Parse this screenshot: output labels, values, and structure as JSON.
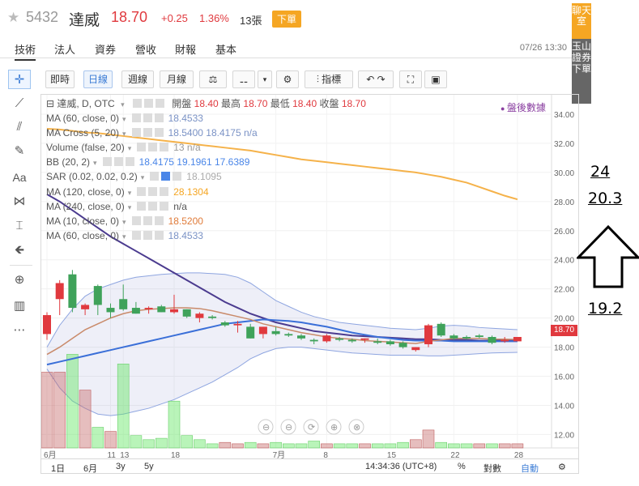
{
  "header": {
    "code": "5432",
    "name": "達威",
    "price": "18.70",
    "change": "+0.25",
    "change_pct": "1.36%",
    "volume": "13張",
    "order_label": "下單"
  },
  "tabs": [
    {
      "label": "技術",
      "active": true
    },
    {
      "label": "法人"
    },
    {
      "label": "資券"
    },
    {
      "label": "營收"
    },
    {
      "label": "財報"
    },
    {
      "label": "基本"
    }
  ],
  "datetime": "07/26 13:30",
  "banner": {
    "top": "聊天室",
    "bottom": "玉山證券下單"
  },
  "chart_toolbar": {
    "intraday": "即時",
    "daily": "日線",
    "weekly": "週線",
    "monthly": "月線",
    "indicators": "指標"
  },
  "legend": {
    "main_title": "達威, D, OTC",
    "open_label": "開盤",
    "open": "18.40",
    "high_label": "最高",
    "high": "18.70",
    "low_label": "最低",
    "low": "18.40",
    "close_label": "收盤",
    "close": "18.70",
    "rows": [
      {
        "label": "MA (60, close, 0)",
        "values": "18.4533",
        "color": "#7a92c5"
      },
      {
        "label": "MA Cross (5, 20)",
        "values": "18.5400  18.4175  n/a",
        "color": "#7a92c5"
      },
      {
        "label": "Volume (false, 20)",
        "values": "13  n/a",
        "color": "#999999"
      },
      {
        "label": "BB (20, 2)",
        "values": "18.4175  19.1961  17.6389",
        "color": "#4a86e8"
      },
      {
        "label": "SAR (0.02, 0.02, 0.2)",
        "values": "18.1095",
        "color": "#aaaaaa"
      },
      {
        "label": "MA (120, close, 0)",
        "values": "28.1304",
        "color": "#f5a623"
      },
      {
        "label": "MA (240, close, 0)",
        "values": "n/a",
        "color": "#555555"
      },
      {
        "label": "MA (10, close, 0)",
        "values": "18.5200",
        "color": "#e07b39"
      },
      {
        "label": "MA (60, close, 0)",
        "values": "18.4533",
        "color": "#7a92c5"
      }
    ],
    "after_hours": "盤後數據"
  },
  "price_tag": "18.70",
  "bottom_bar": {
    "ranges": [
      "1日",
      "6月",
      "3y",
      "5y"
    ],
    "time": "14:34:36 (UTC+8)",
    "pct": "%",
    "log": "對數",
    "auto": "自動"
  },
  "annotations": {
    "a1": "24",
    "a2": "20.3",
    "a3": "19.2"
  },
  "colors": {
    "up": "#e0393e",
    "down": "#4caf50",
    "accent": "#f5a623",
    "blue": "#3a7bd5"
  },
  "chart_data": {
    "type": "candlestick",
    "y_ticks": [
      "34.00",
      "32.00",
      "30.00",
      "28.00",
      "26.00",
      "24.00",
      "22.00",
      "20.00",
      "18.00",
      "16.00",
      "14.00",
      "12.00"
    ],
    "x_ticks": [
      "6月",
      "11",
      "13",
      "18",
      "7月",
      "8",
      "15",
      "22",
      "28"
    ],
    "ylim": [
      10.8,
      35
    ],
    "candles": [
      {
        "o": 18.9,
        "h": 20.4,
        "l": 18.5,
        "c": 20.2
      },
      {
        "o": 21.3,
        "h": 22.6,
        "l": 20.2,
        "c": 22.4
      },
      {
        "o": 23.0,
        "h": 23.3,
        "l": 20.4,
        "c": 20.7
      },
      {
        "o": 20.6,
        "h": 21.0,
        "l": 20.2,
        "c": 20.9
      },
      {
        "o": 22.2,
        "h": 22.3,
        "l": 20.2,
        "c": 20.9
      },
      {
        "o": 20.7,
        "h": 21.0,
        "l": 20.0,
        "c": 20.4
      },
      {
        "o": 21.3,
        "h": 22.3,
        "l": 20.5,
        "c": 20.6
      },
      {
        "o": 20.7,
        "h": 21.1,
        "l": 20.3,
        "c": 20.3
      },
      {
        "o": 20.6,
        "h": 20.8,
        "l": 20.3,
        "c": 20.7
      },
      {
        "o": 20.8,
        "h": 20.9,
        "l": 20.4,
        "c": 20.4
      },
      {
        "o": 20.4,
        "h": 21.6,
        "l": 20.3,
        "c": 20.6
      },
      {
        "o": 20.6,
        "h": 20.6,
        "l": 20.0,
        "c": 20.1
      },
      {
        "o": 20.0,
        "h": 20.4,
        "l": 19.7,
        "c": 20.3
      },
      {
        "o": 20.1,
        "h": 20.2,
        "l": 19.9,
        "c": 20.0
      },
      {
        "o": 19.7,
        "h": 19.8,
        "l": 19.4,
        "c": 19.5
      },
      {
        "o": 19.5,
        "h": 19.8,
        "l": 19.0,
        "c": 19.6
      },
      {
        "o": 19.4,
        "h": 19.6,
        "l": 18.6,
        "c": 18.6
      },
      {
        "o": 18.9,
        "h": 19.4,
        "l": 18.6,
        "c": 19.4
      },
      {
        "o": 19.1,
        "h": 19.4,
        "l": 18.8,
        "c": 18.9
      },
      {
        "o": 18.9,
        "h": 19.0,
        "l": 18.7,
        "c": 18.8
      },
      {
        "o": 18.8,
        "h": 18.9,
        "l": 18.5,
        "c": 18.6
      },
      {
        "o": 18.5,
        "h": 18.6,
        "l": 18.2,
        "c": 18.4
      },
      {
        "o": 18.4,
        "h": 18.9,
        "l": 18.3,
        "c": 18.8
      },
      {
        "o": 18.6,
        "h": 18.7,
        "l": 18.4,
        "c": 18.5
      },
      {
        "o": 18.5,
        "h": 18.6,
        "l": 18.3,
        "c": 18.4
      },
      {
        "o": 18.5,
        "h": 18.6,
        "l": 18.3,
        "c": 18.6
      },
      {
        "o": 18.4,
        "h": 18.6,
        "l": 18.2,
        "c": 18.3
      },
      {
        "o": 18.4,
        "h": 18.5,
        "l": 18.1,
        "c": 18.2
      },
      {
        "o": 18.3,
        "h": 18.4,
        "l": 17.9,
        "c": 18.0
      },
      {
        "o": 17.8,
        "h": 18.0,
        "l": 17.7,
        "c": 18.0
      },
      {
        "o": 18.2,
        "h": 19.6,
        "l": 18.0,
        "c": 19.5
      },
      {
        "o": 19.6,
        "h": 19.7,
        "l": 18.7,
        "c": 18.8
      },
      {
        "o": 18.8,
        "h": 18.9,
        "l": 18.5,
        "c": 18.6
      },
      {
        "o": 18.7,
        "h": 18.8,
        "l": 18.5,
        "c": 18.6
      },
      {
        "o": 18.8,
        "h": 18.9,
        "l": 18.6,
        "c": 18.7
      },
      {
        "o": 18.7,
        "h": 18.8,
        "l": 18.2,
        "c": 18.3
      },
      {
        "o": 18.4,
        "h": 18.7,
        "l": 18.3,
        "c": 18.5
      },
      {
        "o": 18.4,
        "h": 18.7,
        "l": 18.4,
        "c": 18.7
      }
    ],
    "volumes": [
      {
        "v": 5.5,
        "up": true
      },
      {
        "v": 5.5,
        "up": true
      },
      {
        "v": 6.8,
        "up": false
      },
      {
        "v": 4.2,
        "up": true
      },
      {
        "v": 1.5,
        "up": false
      },
      {
        "v": 1.2,
        "up": true
      },
      {
        "v": 6.1,
        "up": false
      },
      {
        "v": 0.9,
        "up": false
      },
      {
        "v": 0.6,
        "up": false
      },
      {
        "v": 0.7,
        "up": false
      },
      {
        "v": 3.4,
        "up": false
      },
      {
        "v": 0.9,
        "up": false
      },
      {
        "v": 0.6,
        "up": false
      },
      {
        "v": 0.3,
        "up": false
      },
      {
        "v": 0.4,
        "up": true
      },
      {
        "v": 0.3,
        "up": true
      },
      {
        "v": 0.4,
        "up": false
      },
      {
        "v": 0.3,
        "up": true
      },
      {
        "v": 0.4,
        "up": false
      },
      {
        "v": 0.3,
        "up": false
      },
      {
        "v": 0.3,
        "up": false
      },
      {
        "v": 0.5,
        "up": false
      },
      {
        "v": 0.3,
        "up": true
      },
      {
        "v": 0.3,
        "up": false
      },
      {
        "v": 0.3,
        "up": false
      },
      {
        "v": 0.3,
        "up": true
      },
      {
        "v": 0.3,
        "up": false
      },
      {
        "v": 0.3,
        "up": false
      },
      {
        "v": 0.4,
        "up": false
      },
      {
        "v": 0.6,
        "up": true
      },
      {
        "v": 1.3,
        "up": true
      },
      {
        "v": 0.4,
        "up": false
      },
      {
        "v": 0.3,
        "up": false
      },
      {
        "v": 0.3,
        "up": false
      },
      {
        "v": 0.3,
        "up": true
      },
      {
        "v": 0.3,
        "up": false
      },
      {
        "v": 0.3,
        "up": true
      },
      {
        "v": 0.3,
        "up": true
      }
    ],
    "ma120": [
      33.0,
      32.95,
      32.85,
      32.75,
      32.7,
      32.6,
      32.5,
      32.4,
      32.3,
      32.2,
      32.1,
      32.0,
      31.9,
      31.8,
      31.7,
      31.6,
      31.5,
      31.35,
      31.2,
      31.05,
      30.9,
      30.8,
      30.7,
      30.6,
      30.5,
      30.4,
      30.3,
      30.2,
      30.1,
      30.0,
      29.85,
      29.7,
      29.5,
      29.3,
      29.0,
      28.7,
      28.4,
      28.15
    ],
    "ma_long": [
      28.5,
      28.0,
      27.4,
      26.8,
      26.2,
      25.6,
      25.1,
      24.6,
      24.1,
      23.6,
      23.1,
      22.6,
      22.1,
      21.6,
      21.1,
      20.7,
      20.3,
      20.0,
      19.7,
      19.5,
      19.3,
      19.1,
      19.0,
      18.9,
      18.8,
      18.75,
      18.7,
      18.65,
      18.6,
      18.55,
      18.55,
      18.5,
      18.5,
      18.5,
      18.45,
      18.45,
      18.45,
      18.45
    ],
    "ma20": [
      16.8,
      17.0,
      17.2,
      17.4,
      17.6,
      17.8,
      18.0,
      18.2,
      18.4,
      18.6,
      18.8,
      19.0,
      19.2,
      19.4,
      19.6,
      19.7,
      19.8,
      19.9,
      19.85,
      19.8,
      19.7,
      19.55,
      19.4,
      19.2,
      19.0,
      18.85,
      18.7,
      18.6,
      18.5,
      18.45,
      18.45,
      18.45,
      18.4,
      18.4,
      18.4,
      18.4,
      18.4,
      18.4
    ],
    "ma10": [
      17.5,
      18.0,
      18.6,
      19.2,
      19.6,
      20.0,
      20.3,
      20.5,
      20.6,
      20.65,
      20.7,
      20.7,
      20.65,
      20.5,
      20.3,
      20.1,
      19.9,
      19.6,
      19.4,
      19.2,
      19.0,
      18.85,
      18.7,
      18.6,
      18.55,
      18.45,
      18.4,
      18.35,
      18.3,
      18.25,
      18.4,
      18.5,
      18.6,
      18.6,
      18.6,
      18.55,
      18.55,
      18.52
    ],
    "bb_upper": [
      18.0,
      19.5,
      20.6,
      21.5,
      22.0,
      22.3,
      22.6,
      22.8,
      22.9,
      23.0,
      23.05,
      23.1,
      23.1,
      23.05,
      23.0,
      22.8,
      22.4,
      21.8,
      21.2,
      20.8,
      20.4,
      20.1,
      19.9,
      19.7,
      19.6,
      19.5,
      19.4,
      19.3,
      19.25,
      19.2,
      19.3,
      19.45,
      19.5,
      19.45,
      19.35,
      19.3,
      19.25,
      19.2
    ],
    "bb_lower": [
      16.5,
      15.2,
      14.3,
      13.8,
      13.4,
      13.3,
      13.4,
      13.6,
      13.8,
      14.1,
      14.4,
      14.8,
      15.2,
      15.6,
      16.1,
      16.6,
      17.2,
      17.6,
      17.9,
      18.0,
      18.0,
      17.9,
      17.8,
      17.7,
      17.6,
      17.55,
      17.5,
      17.45,
      17.45,
      17.45,
      17.4,
      17.4,
      17.45,
      17.5,
      17.55,
      17.6,
      17.62,
      17.64
    ]
  }
}
